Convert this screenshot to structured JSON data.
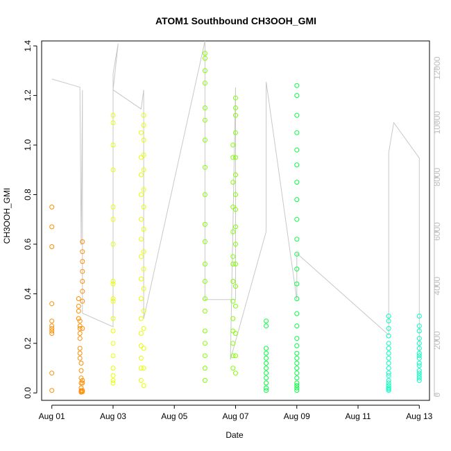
{
  "chart_data": {
    "type": "scatter",
    "title": "ATOM1 Southbound CH3OOH_GMI",
    "xlabel": "Date",
    "ylabel": "CH3OOH_GMI",
    "x_range": [
      "2016-07-31T16:00",
      "2016-08-13T08:00"
    ],
    "ylim": [
      -0.03,
      1.42
    ],
    "y2lim": [
      -200,
      13000
    ],
    "x_ticks": [
      {
        "date": "2016-08-01T00:00",
        "label": "Aug 01"
      },
      {
        "date": "2016-08-03T00:00",
        "label": "Aug 03"
      },
      {
        "date": "2016-08-05T00:00",
        "label": "Aug 05"
      },
      {
        "date": "2016-08-07T00:00",
        "label": "Aug 07"
      },
      {
        "date": "2016-08-09T00:00",
        "label": "Aug 09"
      },
      {
        "date": "2016-08-11T00:00",
        "label": "Aug 11"
      },
      {
        "date": "2016-08-13T00:00",
        "label": "Aug 13"
      }
    ],
    "y_ticks": [
      "0.0",
      "0.2",
      "0.4",
      "0.6",
      "0.8",
      "1.0",
      "1.2",
      "1.4"
    ],
    "y2_ticks": [
      "0",
      "2000",
      "4000",
      "6000",
      "8000",
      "10000",
      "12000"
    ],
    "grid": false,
    "legend": "none",
    "colors": {
      "altitude_line": "#c8c8c8",
      "flight_1": "#ff8c00",
      "flight_2": "#e6ff00",
      "flight_3": "#80ff00",
      "flight_4": "#00ff40",
      "flight_5": "#00ffc0"
    },
    "altitude_series": {
      "axis": "right",
      "points": [
        [
          "2016-08-01T00:00",
          11600
        ],
        [
          "2016-08-01T22:00",
          11300
        ],
        [
          "2016-08-01T23:00",
          5500
        ],
        [
          "2016-08-02T00:00",
          11200
        ],
        [
          "2016-08-02T00:00",
          3000
        ],
        [
          "2016-08-03T00:00",
          2500
        ],
        [
          "2016-08-03T00:00",
          11800
        ],
        [
          "2016-08-03T04:00",
          12900
        ],
        [
          "2016-08-03T00:00",
          11200
        ],
        [
          "2016-08-03T22:00",
          10500
        ],
        [
          "2016-08-04T00:00",
          11200
        ],
        [
          "2016-08-04T00:00",
          2800
        ],
        [
          "2016-08-06T00:00",
          13000
        ],
        [
          "2016-08-06T00:00",
          3500
        ],
        [
          "2016-08-07T00:00",
          3500
        ],
        [
          "2016-08-07T00:00",
          11300
        ],
        [
          "2016-08-06T20:00",
          1300
        ],
        [
          "2016-08-08T00:00",
          6000
        ],
        [
          "2016-08-08T00:00",
          11500
        ],
        [
          "2016-08-09T00:00",
          3500
        ],
        [
          "2016-08-09T00:00",
          5200
        ],
        [
          "2016-08-12T00:00",
          2200
        ],
        [
          "2016-08-12T00:00",
          8900
        ],
        [
          "2016-08-12T04:00",
          10000
        ],
        [
          "2016-08-13T00:00",
          8700
        ],
        [
          "2016-08-13T00:00",
          1500
        ]
      ]
    },
    "series": [
      {
        "color": "#ff8c00",
        "x": [
          "2016-08-01T00:00",
          "2016-08-01T00:00",
          "2016-08-01T00:00",
          "2016-08-01T00:00",
          "2016-08-01T00:00",
          "2016-08-01T00:00",
          "2016-08-01T00:00",
          "2016-08-01T00:00",
          "2016-08-01T00:00",
          "2016-08-01T00:00",
          "2016-08-01T00:00",
          "2016-08-01T21:00",
          "2016-08-01T21:00",
          "2016-08-01T21:00",
          "2016-08-01T21:00",
          "2016-08-01T22:00",
          "2016-08-01T22:00",
          "2016-08-01T22:00",
          "2016-08-01T22:00",
          "2016-08-01T22:00",
          "2016-08-01T22:00",
          "2016-08-01T22:00",
          "2016-08-01T22:00",
          "2016-08-01T23:00",
          "2016-08-01T23:00",
          "2016-08-01T23:00",
          "2016-08-01T23:00",
          "2016-08-01T23:00",
          "2016-08-01T23:00",
          "2016-08-01T23:00",
          "2016-08-01T23:00",
          "2016-08-02T00:00",
          "2016-08-02T00:00",
          "2016-08-02T00:00",
          "2016-08-02T00:00",
          "2016-08-02T00:00",
          "2016-08-02T00:00",
          "2016-08-02T00:00",
          "2016-08-02T00:00",
          "2016-08-02T00:00",
          "2016-08-02T00:00",
          "2016-08-02T00:00",
          "2016-08-02T00:00"
        ],
        "y": [
          0.75,
          0.67,
          0.59,
          0.36,
          0.29,
          0.27,
          0.26,
          0.25,
          0.24,
          0.08,
          0.01,
          0.38,
          0.35,
          0.33,
          0.3,
          0.29,
          0.27,
          0.26,
          0.24,
          0.22,
          0.18,
          0.16,
          0.14,
          0.12,
          0.09,
          0.06,
          0.04,
          0.02,
          0.01,
          0.005,
          0.003,
          0.61,
          0.57,
          0.53,
          0.49,
          0.45,
          0.41,
          0.37,
          0.26,
          0.05,
          0.04,
          0.01,
          0.005
        ]
      },
      {
        "color": "#e6ff00",
        "x": [
          "2016-08-03T00:00",
          "2016-08-03T00:00",
          "2016-08-03T00:00",
          "2016-08-03T00:00",
          "2016-08-03T00:00",
          "2016-08-03T00:00",
          "2016-08-03T00:00",
          "2016-08-03T00:00",
          "2016-08-03T00:00",
          "2016-08-03T00:00",
          "2016-08-03T00:00",
          "2016-08-03T00:00",
          "2016-08-03T00:00",
          "2016-08-03T00:00",
          "2016-08-03T00:00",
          "2016-08-03T00:00",
          "2016-08-03T00:00",
          "2016-08-03T00:00",
          "2016-08-03T00:00",
          "2016-08-03T22:00",
          "2016-08-03T22:00",
          "2016-08-03T22:00",
          "2016-08-03T22:00",
          "2016-08-03T22:00",
          "2016-08-03T22:00",
          "2016-08-03T22:00",
          "2016-08-03T22:00",
          "2016-08-03T22:00",
          "2016-08-03T22:00",
          "2016-08-03T22:00",
          "2016-08-03T22:00",
          "2016-08-03T22:00",
          "2016-08-03T22:00",
          "2016-08-03T22:00",
          "2016-08-04T00:00",
          "2016-08-04T00:00",
          "2016-08-04T00:00",
          "2016-08-04T00:00",
          "2016-08-04T00:00",
          "2016-08-04T00:00",
          "2016-08-04T00:00",
          "2016-08-04T00:00",
          "2016-08-04T00:00",
          "2016-08-04T00:00",
          "2016-08-04T00:00",
          "2016-08-04T00:00",
          "2016-08-04T00:00",
          "2016-08-04T00:00",
          "2016-08-04T00:00",
          "2016-08-04T00:00"
        ],
        "y": [
          1.12,
          1.09,
          1.0,
          0.9,
          0.75,
          0.7,
          0.6,
          0.45,
          0.44,
          0.38,
          0.37,
          0.3,
          0.25,
          0.2,
          0.15,
          0.1,
          0.07,
          0.05,
          0.04,
          1.05,
          0.95,
          0.88,
          0.8,
          0.7,
          0.62,
          0.55,
          0.46,
          0.38,
          0.3,
          0.24,
          0.19,
          0.14,
          0.1,
          0.05,
          1.12,
          1.08,
          1.02,
          0.96,
          0.9,
          0.82,
          0.75,
          0.66,
          0.57,
          0.5,
          0.42,
          0.33,
          0.26,
          0.18,
          0.1,
          0.03
        ]
      },
      {
        "color": "#80ff00",
        "x": [
          "2016-08-06T00:00",
          "2016-08-06T00:00",
          "2016-08-06T00:00",
          "2016-08-06T00:00",
          "2016-08-06T00:00",
          "2016-08-06T00:00",
          "2016-08-06T00:00",
          "2016-08-06T00:00",
          "2016-08-06T00:00",
          "2016-08-06T00:00",
          "2016-08-06T00:00",
          "2016-08-06T00:00",
          "2016-08-06T00:00",
          "2016-08-06T00:00",
          "2016-08-06T00:00",
          "2016-08-06T00:00",
          "2016-08-06T00:00",
          "2016-08-06T00:00",
          "2016-08-06T00:00",
          "2016-08-06T00:00",
          "2016-08-06T22:00",
          "2016-08-06T22:00",
          "2016-08-06T22:00",
          "2016-08-06T22:00",
          "2016-08-06T22:00",
          "2016-08-06T22:00",
          "2016-08-06T22:00",
          "2016-08-06T22:00",
          "2016-08-06T22:00",
          "2016-08-06T22:00",
          "2016-08-06T22:00",
          "2016-08-06T22:00",
          "2016-08-06T22:00",
          "2016-08-06T22:00",
          "2016-08-07T00:00",
          "2016-08-07T00:00",
          "2016-08-07T00:00",
          "2016-08-07T00:00",
          "2016-08-07T00:00",
          "2016-08-07T00:00",
          "2016-08-07T00:00",
          "2016-08-07T00:00",
          "2016-08-07T00:00",
          "2016-08-07T00:00",
          "2016-08-07T00:00",
          "2016-08-07T00:00",
          "2016-08-07T00:00",
          "2016-08-07T00:00",
          "2016-08-07T00:00",
          "2016-08-07T00:00"
        ],
        "y": [
          1.37,
          1.35,
          1.3,
          1.25,
          1.15,
          1.1,
          1.02,
          0.91,
          0.8,
          0.68,
          0.61,
          0.52,
          0.45,
          0.38,
          0.33,
          0.25,
          0.2,
          0.15,
          0.1,
          0.05,
          1.0,
          0.95,
          0.85,
          0.75,
          0.65,
          0.55,
          0.52,
          0.45,
          0.37,
          0.3,
          0.25,
          0.2,
          0.15,
          0.1,
          1.19,
          1.15,
          1.12,
          1.05,
          0.95,
          0.88,
          0.8,
          0.74,
          0.67,
          0.6,
          0.52,
          0.43,
          0.35,
          0.24,
          0.15,
          0.08
        ]
      },
      {
        "color": "#00ff40",
        "x": [
          "2016-08-08T00:00",
          "2016-08-08T00:00",
          "2016-08-08T00:00",
          "2016-08-08T00:00",
          "2016-08-08T00:00",
          "2016-08-08T00:00",
          "2016-08-08T00:00",
          "2016-08-08T00:00",
          "2016-08-08T00:00",
          "2016-08-08T00:00",
          "2016-08-08T00:00",
          "2016-08-08T00:00",
          "2016-08-09T00:00",
          "2016-08-09T00:00",
          "2016-08-09T00:00",
          "2016-08-09T00:00",
          "2016-08-09T00:00",
          "2016-08-09T00:00",
          "2016-08-09T00:00",
          "2016-08-09T00:00",
          "2016-08-09T00:00",
          "2016-08-09T00:00",
          "2016-08-09T00:00",
          "2016-08-09T00:00",
          "2016-08-09T00:00",
          "2016-08-09T00:00",
          "2016-08-09T00:00",
          "2016-08-09T00:00",
          "2016-08-09T00:00",
          "2016-08-09T00:00",
          "2016-08-09T00:00",
          "2016-08-09T00:00",
          "2016-08-09T00:00",
          "2016-08-09T00:00",
          "2016-08-09T00:00",
          "2016-08-09T00:00",
          "2016-08-09T00:00",
          "2016-08-09T00:00",
          "2016-08-09T00:00",
          "2016-08-09T00:00"
        ],
        "y": [
          0.29,
          0.27,
          0.18,
          0.16,
          0.14,
          0.12,
          0.1,
          0.08,
          0.06,
          0.04,
          0.02,
          0.01,
          1.24,
          1.2,
          1.12,
          1.05,
          0.98,
          0.92,
          0.85,
          0.78,
          0.7,
          0.62,
          0.56,
          0.5,
          0.44,
          0.38,
          0.32,
          0.27,
          0.22,
          0.19,
          0.16,
          0.14,
          0.12,
          0.1,
          0.08,
          0.06,
          0.04,
          0.03,
          0.02,
          0.01
        ]
      },
      {
        "color": "#00ffc0",
        "x": [
          "2016-08-12T00:00",
          "2016-08-12T00:00",
          "2016-08-12T00:00",
          "2016-08-12T00:00",
          "2016-08-12T00:00",
          "2016-08-12T00:00",
          "2016-08-12T00:00",
          "2016-08-12T00:00",
          "2016-08-12T00:00",
          "2016-08-12T00:00",
          "2016-08-12T00:00",
          "2016-08-12T00:00",
          "2016-08-12T00:00",
          "2016-08-12T00:00",
          "2016-08-12T00:00",
          "2016-08-12T00:00",
          "2016-08-12T00:00",
          "2016-08-12T00:00",
          "2016-08-13T00:00",
          "2016-08-13T00:00",
          "2016-08-13T00:00",
          "2016-08-13T00:00",
          "2016-08-13T00:00",
          "2016-08-13T00:00",
          "2016-08-13T00:00",
          "2016-08-13T00:00",
          "2016-08-13T00:00",
          "2016-08-13T00:00",
          "2016-08-13T00:00",
          "2016-08-13T00:00",
          "2016-08-13T00:00",
          "2016-08-13T00:00",
          "2016-08-13T00:00",
          "2016-08-13T00:00"
        ],
        "y": [
          0.31,
          0.29,
          0.26,
          0.23,
          0.2,
          0.18,
          0.16,
          0.14,
          0.12,
          0.1,
          0.08,
          0.07,
          0.05,
          0.04,
          0.03,
          0.02,
          0.015,
          0.01,
          0.31,
          0.27,
          0.25,
          0.22,
          0.2,
          0.18,
          0.16,
          0.15,
          0.14,
          0.12,
          0.11,
          0.09,
          0.08,
          0.07,
          0.06,
          0.05
        ]
      }
    ]
  }
}
